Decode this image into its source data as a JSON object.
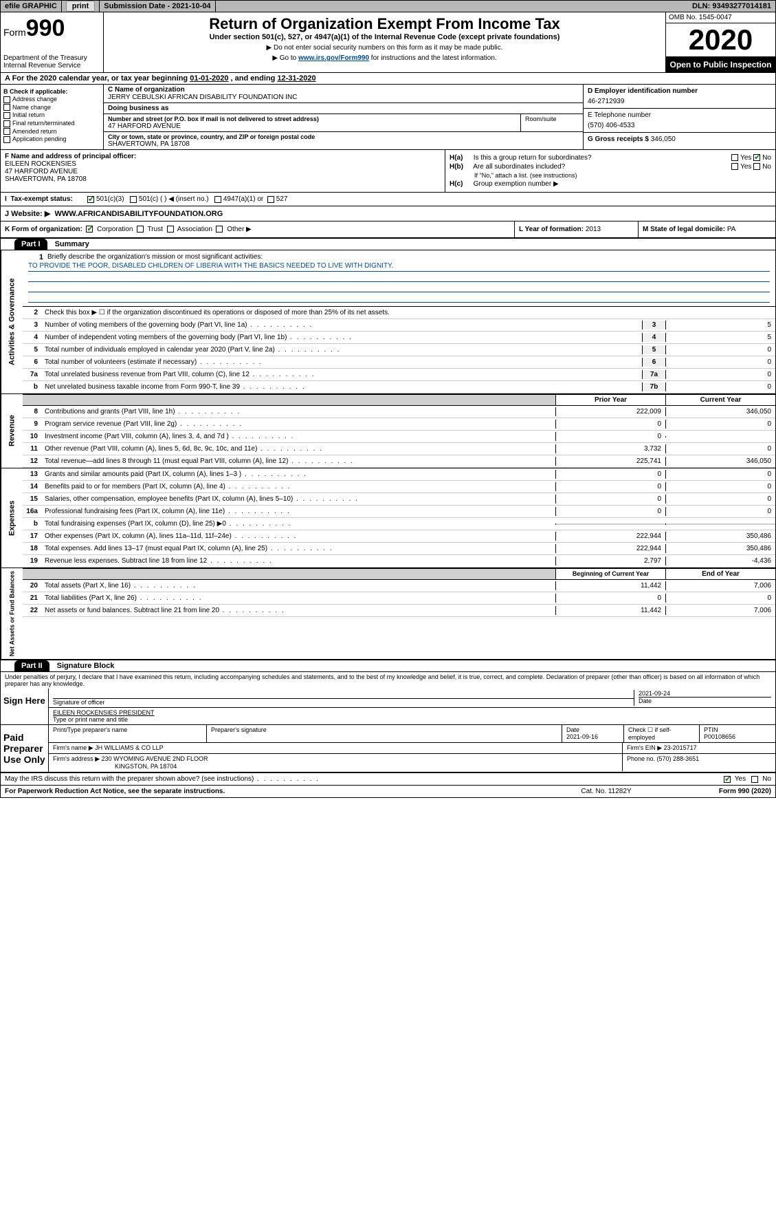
{
  "top": {
    "efile": "efile GRAPHIC",
    "print": "print",
    "subdate_label": "Submission Date - ",
    "subdate": "2021-10-04",
    "dln_label": "DLN: ",
    "dln": "93493277014181"
  },
  "header": {
    "form_prefix": "Form",
    "form_num": "990",
    "dept": "Department of the Treasury\nInternal Revenue Service",
    "title": "Return of Organization Exempt From Income Tax",
    "subtitle": "Under section 501(c), 527, or 4947(a)(1) of the Internal Revenue Code (except private foundations)",
    "note1": "▶ Do not enter social security numbers on this form as it may be made public.",
    "note2_pre": "▶ Go to ",
    "note2_link": "www.irs.gov/Form990",
    "note2_post": " for instructions and the latest information.",
    "omb": "OMB No. 1545-0047",
    "year": "2020",
    "open_public": "Open to Public Inspection"
  },
  "period": {
    "text_pre": "A For the 2020 calendar year, or tax year beginning ",
    "begin": "01-01-2020",
    "mid": " , and ending ",
    "end": "12-31-2020"
  },
  "blockB": {
    "label": "B Check if applicable:",
    "opts": [
      "Address change",
      "Name change",
      "Initial return",
      "Final return/terminated",
      "Amended return",
      "Application pending"
    ]
  },
  "blockC": {
    "name_label": "C Name of organization",
    "name": "JERRY CEBULSKI AFRICAN DISABILITY FOUNDATION INC",
    "dba_label": "Doing business as",
    "dba": "",
    "addr_label": "Number and street (or P.O. box if mail is not delivered to street address)",
    "addr": "47 HARFORD AVENUE",
    "room_label": "Room/suite",
    "city_label": "City or town, state or province, country, and ZIP or foreign postal code",
    "city": "SHAVERTOWN, PA  18708"
  },
  "blockD": {
    "ein_label": "D Employer identification number",
    "ein": "46-2712939",
    "phone_label": "E Telephone number",
    "phone": "(570) 406-4533",
    "gross_label": "G Gross receipts $ ",
    "gross": "346,050"
  },
  "blockF": {
    "label": "F Name and address of principal officer:",
    "name": "EILEEN ROCKENSIES",
    "addr1": "47 HARFORD AVENUE",
    "addr2": "SHAVERTOWN, PA  18708"
  },
  "blockH": {
    "a_label": "H(a)",
    "a_text": "Is this a group return for subordinates?",
    "b_label": "H(b)",
    "b_text": "Are all subordinates included?",
    "note": "If \"No,\" attach a list. (see instructions)",
    "c_label": "H(c)",
    "c_text": "Group exemption number ▶"
  },
  "taxexempt": {
    "label": "Tax-exempt status:",
    "o1": "501(c)(3)",
    "o2": "501(c) (  ) ◀ (insert no.)",
    "o3": "4947(a)(1) or",
    "o4": "527"
  },
  "website": {
    "label": "J   Website: ▶",
    "url": "WWW.AFRICANDISABILITYFOUNDATION.ORG"
  },
  "kform": {
    "label": "K Form of organization:",
    "o1": "Corporation",
    "o2": "Trust",
    "o3": "Association",
    "o4": "Other ▶",
    "year_label": "L Year of formation: ",
    "year": "2013",
    "state_label": "M State of legal domicile: ",
    "state": "PA"
  },
  "part1": {
    "hdr": "Part I",
    "title": "Summary",
    "side1": "Activities & Governance",
    "side2": "Revenue",
    "side3": "Expenses",
    "side4": "Net Assets or Fund Balances",
    "l1_label": "1",
    "l1_desc": "Briefly describe the organization's mission or most significant activities:",
    "mission": "TO PROVIDE THE POOR, DISABLED CHILDREN OF LIBERIA WITH THE BASICS NEEDED TO LIVE WITH DIGNITY.",
    "l2_desc": "Check this box ▶ ☐  if the organization discontinued its operations or disposed of more than 25% of its net assets.",
    "lines_gov": [
      {
        "n": "3",
        "d": "Number of voting members of the governing body (Part VI, line 1a)",
        "box": "3",
        "v": "5"
      },
      {
        "n": "4",
        "d": "Number of independent voting members of the governing body (Part VI, line 1b)",
        "box": "4",
        "v": "5"
      },
      {
        "n": "5",
        "d": "Total number of individuals employed in calendar year 2020 (Part V, line 2a)",
        "box": "5",
        "v": "0"
      },
      {
        "n": "6",
        "d": "Total number of volunteers (estimate if necessary)",
        "box": "6",
        "v": "0"
      },
      {
        "n": "7a",
        "d": "Total unrelated business revenue from Part VIII, column (C), line 12",
        "box": "7a",
        "v": "0"
      },
      {
        "n": "b",
        "d": "Net unrelated business taxable income from Form 990-T, line 39",
        "box": "7b",
        "v": "0"
      }
    ],
    "col_prior": "Prior Year",
    "col_curr": "Current Year",
    "lines_rev": [
      {
        "n": "8",
        "d": "Contributions and grants (Part VIII, line 1h)",
        "p": "222,009",
        "c": "346,050"
      },
      {
        "n": "9",
        "d": "Program service revenue (Part VIII, line 2g)",
        "p": "0",
        "c": "0"
      },
      {
        "n": "10",
        "d": "Investment income (Part VIII, column (A), lines 3, 4, and 7d )",
        "p": "0",
        "c": ""
      },
      {
        "n": "11",
        "d": "Other revenue (Part VIII, column (A), lines 5, 6d, 8c, 9c, 10c, and 11e)",
        "p": "3,732",
        "c": "0"
      },
      {
        "n": "12",
        "d": "Total revenue—add lines 8 through 11 (must equal Part VIII, column (A), line 12)",
        "p": "225,741",
        "c": "346,050"
      }
    ],
    "lines_exp": [
      {
        "n": "13",
        "d": "Grants and similar amounts paid (Part IX, column (A), lines 1–3 )",
        "p": "0",
        "c": "0"
      },
      {
        "n": "14",
        "d": "Benefits paid to or for members (Part IX, column (A), line 4)",
        "p": "0",
        "c": "0"
      },
      {
        "n": "15",
        "d": "Salaries, other compensation, employee benefits (Part IX, column (A), lines 5–10)",
        "p": "0",
        "c": "0"
      },
      {
        "n": "16a",
        "d": "Professional fundraising fees (Part IX, column (A), line 11e)",
        "p": "0",
        "c": "0"
      },
      {
        "n": "b",
        "d": "Total fundraising expenses (Part IX, column (D), line 25) ▶0",
        "p": "",
        "c": "",
        "shaded": true
      },
      {
        "n": "17",
        "d": "Other expenses (Part IX, column (A), lines 11a–11d, 11f–24e)",
        "p": "222,944",
        "c": "350,486"
      },
      {
        "n": "18",
        "d": "Total expenses. Add lines 13–17 (must equal Part IX, column (A), line 25)",
        "p": "222,944",
        "c": "350,486"
      },
      {
        "n": "19",
        "d": "Revenue less expenses. Subtract line 18 from line 12",
        "p": "2,797",
        "c": "-4,436"
      }
    ],
    "col_beg": "Beginning of Current Year",
    "col_end": "End of Year",
    "lines_net": [
      {
        "n": "20",
        "d": "Total assets (Part X, line 16)",
        "p": "11,442",
        "c": "7,006"
      },
      {
        "n": "21",
        "d": "Total liabilities (Part X, line 26)",
        "p": "0",
        "c": "0"
      },
      {
        "n": "22",
        "d": "Net assets or fund balances. Subtract line 21 from line 20",
        "p": "11,442",
        "c": "7,006"
      }
    ]
  },
  "part2": {
    "hdr": "Part II",
    "title": "Signature Block",
    "perjury": "Under penalties of perjury, I declare that I have examined this return, including accompanying schedules and statements, and to the best of my knowledge and belief, it is true, correct, and complete. Declaration of preparer (other than officer) is based on all information of which preparer has any knowledge.",
    "sign_here": "Sign Here",
    "sig_officer": "Signature of officer",
    "sig_date": "2021-09-24",
    "date_label": "Date",
    "officer_name": "EILEEN ROCKENSIES  PRESIDENT",
    "type_name": "Type or print name and title",
    "paid_prep": "Paid Preparer Use Only",
    "pp_name_label": "Print/Type preparer's name",
    "pp_sig_label": "Preparer's signature",
    "pp_date_label": "Date",
    "pp_date": "2021-09-16",
    "pp_check_label": "Check ☐ if self-employed",
    "ptin_label": "PTIN",
    "ptin": "P00108656",
    "firm_name_label": "Firm's name    ▶ ",
    "firm_name": "JH WILLIAMS & CO LLP",
    "firm_ein_label": "Firm's EIN ▶ ",
    "firm_ein": "23-2015717",
    "firm_addr_label": "Firm's address ▶ ",
    "firm_addr": "230 WYOMING AVENUE 2ND FLOOR",
    "firm_city": "KINGSTON, PA  18704",
    "firm_phone_label": "Phone no. ",
    "firm_phone": "(570) 288-3651",
    "discuss": "May the IRS discuss this return with the preparer shown above? (see instructions)",
    "yes": "Yes",
    "no": "No"
  },
  "footer": {
    "pra": "For Paperwork Reduction Act Notice, see the separate instructions.",
    "cat": "Cat. No. 11282Y",
    "form": "Form 990 (2020)"
  }
}
